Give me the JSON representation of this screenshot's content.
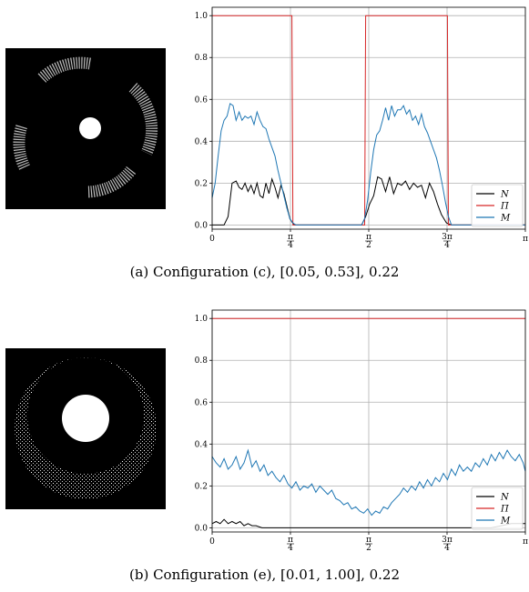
{
  "colors": {
    "N": "#000000",
    "Pi": "#d62728",
    "M": "#1f77b4",
    "grid": "#b0b0b0",
    "thumb_bg": "#000000",
    "thumb_fg": "#ffffff"
  },
  "panels": [
    {
      "caption": "(a) Configuration (c), [0.05, 0.53], 0.22",
      "thumbnail": "rotated-arc-segments-image",
      "chart_data": {
        "type": "line",
        "xlim": [
          0,
          3.1416
        ],
        "ylim": [
          -0.02,
          1.04
        ],
        "xticks": [
          {
            "value": 0,
            "label": "0"
          },
          {
            "value": 0.7854,
            "label": "π/4"
          },
          {
            "value": 1.5708,
            "label": "π/2"
          },
          {
            "value": 2.3562,
            "label": "3π/4"
          },
          {
            "value": 3.1416,
            "label": "π"
          }
        ],
        "yticks": [
          0.0,
          0.2,
          0.4,
          0.6,
          0.8,
          1.0
        ],
        "grid": true,
        "legend": "bottom-right",
        "series": [
          {
            "name": "N",
            "color": "#000000",
            "x": [
              0,
              0.12,
              0.16,
              0.2,
              0.24,
              0.27,
              0.3,
              0.33,
              0.36,
              0.39,
              0.42,
              0.45,
              0.48,
              0.51,
              0.54,
              0.57,
              0.6,
              0.63,
              0.66,
              0.69,
              0.72,
              0.75,
              0.78,
              0.82,
              1.5,
              1.54,
              1.58,
              1.62,
              1.66,
              1.7,
              1.74,
              1.78,
              1.82,
              1.86,
              1.9,
              1.94,
              1.98,
              2.02,
              2.06,
              2.1,
              2.14,
              2.18,
              2.22,
              2.26,
              2.3,
              2.35,
              2.4,
              3.1416
            ],
            "y": [
              0,
              0,
              0.04,
              0.2,
              0.21,
              0.18,
              0.17,
              0.2,
              0.16,
              0.19,
              0.15,
              0.2,
              0.14,
              0.13,
              0.2,
              0.15,
              0.22,
              0.18,
              0.13,
              0.19,
              0.15,
              0.09,
              0.03,
              0,
              0,
              0.04,
              0.1,
              0.14,
              0.23,
              0.22,
              0.16,
              0.23,
              0.15,
              0.2,
              0.19,
              0.21,
              0.17,
              0.2,
              0.18,
              0.19,
              0.13,
              0.2,
              0.16,
              0.1,
              0.05,
              0.01,
              0,
              0
            ]
          },
          {
            "name": "Π",
            "color": "#d62728",
            "x": [
              0,
              0.8,
              0.81,
              1.53,
              1.54,
              2.36,
              2.37,
              3.1416
            ],
            "y": [
              1.0,
              1.0,
              0,
              0,
              1.0,
              1.0,
              0,
              0
            ]
          },
          {
            "name": "M",
            "color": "#1f77b4",
            "x": [
              0,
              0.03,
              0.06,
              0.09,
              0.12,
              0.15,
              0.18,
              0.21,
              0.24,
              0.27,
              0.3,
              0.33,
              0.36,
              0.39,
              0.42,
              0.45,
              0.48,
              0.51,
              0.54,
              0.57,
              0.6,
              0.63,
              0.66,
              0.69,
              0.72,
              0.75,
              0.78,
              0.81,
              0.84,
              1.5,
              1.53,
              1.56,
              1.59,
              1.62,
              1.65,
              1.68,
              1.71,
              1.74,
              1.77,
              1.8,
              1.83,
              1.86,
              1.89,
              1.92,
              1.95,
              1.98,
              2.01,
              2.04,
              2.07,
              2.1,
              2.13,
              2.16,
              2.19,
              2.22,
              2.25,
              2.28,
              2.31,
              2.34,
              2.37,
              2.4,
              3.1416
            ],
            "y": [
              0.13,
              0.2,
              0.33,
              0.45,
              0.5,
              0.52,
              0.58,
              0.57,
              0.5,
              0.54,
              0.5,
              0.52,
              0.51,
              0.52,
              0.48,
              0.54,
              0.5,
              0.47,
              0.46,
              0.41,
              0.37,
              0.33,
              0.26,
              0.2,
              0.14,
              0.08,
              0.03,
              0.01,
              0,
              0,
              0.03,
              0.12,
              0.25,
              0.36,
              0.43,
              0.45,
              0.5,
              0.56,
              0.5,
              0.57,
              0.52,
              0.55,
              0.55,
              0.57,
              0.53,
              0.55,
              0.5,
              0.52,
              0.48,
              0.53,
              0.47,
              0.44,
              0.4,
              0.36,
              0.32,
              0.26,
              0.19,
              0.11,
              0.04,
              0,
              0
            ]
          }
        ]
      }
    },
    {
      "caption": "(b) Configuration (e), [0.01, 1.00], 0.22",
      "thumbnail": "crescent-ring-image",
      "chart_data": {
        "type": "line",
        "xlim": [
          0,
          3.1416
        ],
        "ylim": [
          -0.02,
          1.04
        ],
        "xticks": [
          {
            "value": 0,
            "label": "0"
          },
          {
            "value": 0.7854,
            "label": "π/4"
          },
          {
            "value": 1.5708,
            "label": "π/2"
          },
          {
            "value": 2.3562,
            "label": "3π/4"
          },
          {
            "value": 3.1416,
            "label": "π"
          }
        ],
        "yticks": [
          0.0,
          0.2,
          0.4,
          0.6,
          0.8,
          1.0
        ],
        "grid": true,
        "legend": "bottom-right",
        "series": [
          {
            "name": "N",
            "color": "#000000",
            "x": [
              0,
              0.04,
              0.08,
              0.12,
              0.16,
              0.2,
              0.24,
              0.28,
              0.32,
              0.36,
              0.4,
              0.44,
              0.5,
              0.6,
              2.6,
              2.8,
              2.9,
              3.0,
              3.1416
            ],
            "y": [
              0.02,
              0.03,
              0.02,
              0.04,
              0.02,
              0.03,
              0.02,
              0.03,
              0.01,
              0.02,
              0.01,
              0.01,
              0,
              0,
              0,
              0,
              0.01,
              0.02,
              0.02
            ]
          },
          {
            "name": "Π",
            "color": "#d62728",
            "x": [
              0,
              3.1416
            ],
            "y": [
              1.0,
              1.0
            ]
          },
          {
            "name": "M",
            "color": "#1f77b4",
            "x": [
              0,
              0.04,
              0.08,
              0.12,
              0.16,
              0.2,
              0.24,
              0.28,
              0.32,
              0.36,
              0.4,
              0.44,
              0.48,
              0.52,
              0.56,
              0.6,
              0.64,
              0.68,
              0.72,
              0.76,
              0.8,
              0.84,
              0.88,
              0.92,
              0.96,
              1.0,
              1.04,
              1.08,
              1.12,
              1.16,
              1.2,
              1.24,
              1.28,
              1.32,
              1.36,
              1.4,
              1.44,
              1.48,
              1.52,
              1.56,
              1.6,
              1.64,
              1.68,
              1.72,
              1.76,
              1.8,
              1.84,
              1.88,
              1.92,
              1.96,
              2.0,
              2.04,
              2.08,
              2.12,
              2.16,
              2.2,
              2.24,
              2.28,
              2.32,
              2.36,
              2.4,
              2.44,
              2.48,
              2.52,
              2.56,
              2.6,
              2.64,
              2.68,
              2.72,
              2.76,
              2.8,
              2.84,
              2.88,
              2.92,
              2.96,
              3.0,
              3.04,
              3.08,
              3.12,
              3.1416
            ],
            "y": [
              0.34,
              0.31,
              0.29,
              0.33,
              0.28,
              0.3,
              0.34,
              0.28,
              0.31,
              0.37,
              0.29,
              0.32,
              0.27,
              0.3,
              0.25,
              0.27,
              0.24,
              0.22,
              0.25,
              0.21,
              0.19,
              0.22,
              0.18,
              0.2,
              0.19,
              0.21,
              0.17,
              0.2,
              0.18,
              0.16,
              0.18,
              0.14,
              0.13,
              0.11,
              0.12,
              0.09,
              0.1,
              0.08,
              0.07,
              0.09,
              0.06,
              0.08,
              0.07,
              0.1,
              0.09,
              0.12,
              0.14,
              0.16,
              0.19,
              0.17,
              0.2,
              0.18,
              0.22,
              0.19,
              0.23,
              0.2,
              0.24,
              0.22,
              0.26,
              0.23,
              0.28,
              0.25,
              0.3,
              0.27,
              0.29,
              0.27,
              0.31,
              0.29,
              0.33,
              0.3,
              0.35,
              0.32,
              0.36,
              0.33,
              0.37,
              0.34,
              0.32,
              0.35,
              0.31,
              0.27
            ]
          }
        ]
      }
    }
  ]
}
